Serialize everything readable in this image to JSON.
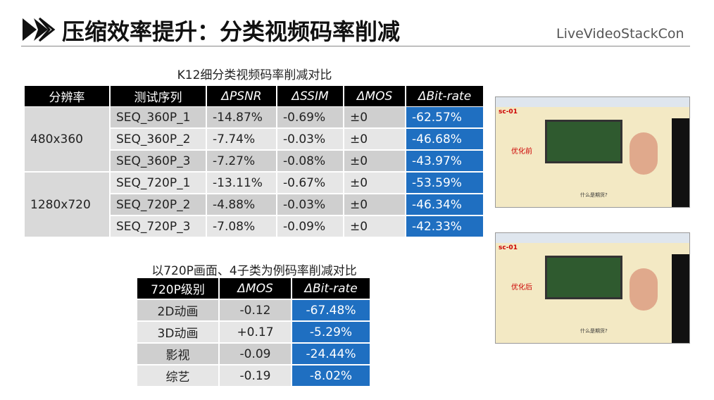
{
  "header": {
    "title": "压缩效率提升：分类视频码率削减",
    "logo": "LiveVideoStackCon"
  },
  "table1": {
    "caption": "K12细分类视频码率削减对比",
    "headers": [
      "分辨率",
      "测试序列",
      "ΔPSNR",
      "ΔSSIM",
      "ΔMOS",
      "ΔBit-rate"
    ],
    "groups": [
      {
        "resolution": "480x360",
        "rows": [
          [
            "SEQ_360P_1",
            "-14.87%",
            "-0.69%",
            "±0",
            "-62.57%"
          ],
          [
            "SEQ_360P_2",
            "-7.74%",
            "-0.03%",
            "±0",
            "-46.68%"
          ],
          [
            "SEQ_360P_3",
            "-7.27%",
            "-0.08%",
            "±0",
            "-43.97%"
          ]
        ]
      },
      {
        "resolution": "1280x720",
        "rows": [
          [
            "SEQ_720P_1",
            "-13.11%",
            "-0.67%",
            "±0",
            "-53.59%"
          ],
          [
            "SEQ_720P_2",
            "-4.88%",
            "-0.03%",
            "±0",
            "-46.34%"
          ],
          [
            "SEQ_720P_3",
            "-7.08%",
            "-0.09%",
            "±0",
            "-42.33%"
          ]
        ]
      }
    ]
  },
  "table2": {
    "caption": "以720P画面、4子类为例码率削减对比",
    "headers": [
      "720P级别",
      "ΔMOS",
      "ΔBit-rate"
    ],
    "rows": [
      [
        "2D动画",
        "-0.12",
        "-67.48%"
      ],
      [
        "3D动画",
        "+0.17",
        "-5.29%"
      ],
      [
        "影视",
        "-0.09",
        "-24.44%"
      ],
      [
        "综艺",
        "-0.19",
        "-8.02%"
      ]
    ]
  },
  "screenshots": [
    {
      "tag": "sc-01",
      "label": "优化前",
      "caption": "什么是期货?"
    },
    {
      "tag": "sc-01",
      "label": "优化后",
      "caption": "什么是期货?"
    }
  ]
}
